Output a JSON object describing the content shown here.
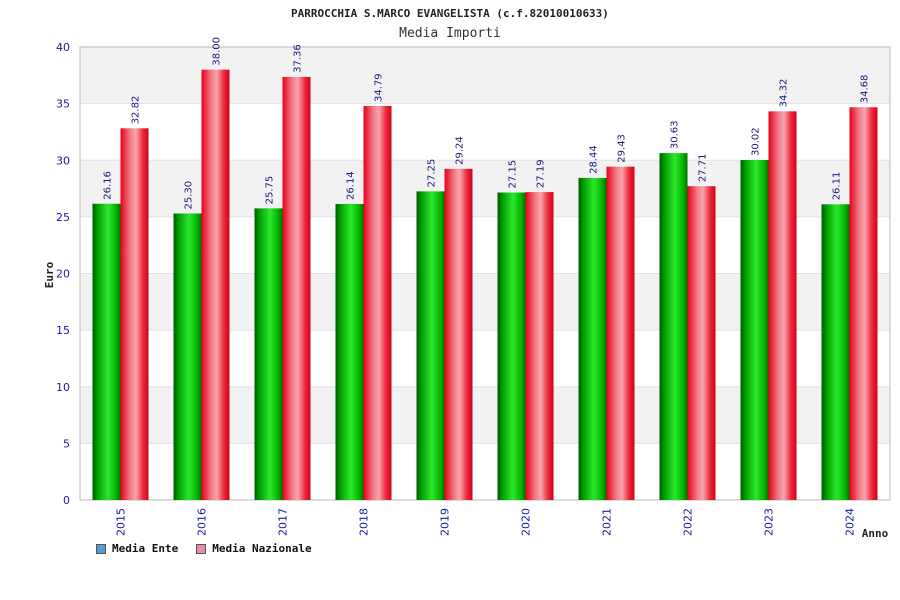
{
  "chart_data": {
    "type": "bar",
    "title": "PARROCCHIA S.MARCO EVANGELISTA (c.f.82010010633)",
    "subtitle": "Media Importi",
    "xlabel": "Anno",
    "ylabel": "Euro",
    "ylim": [
      0,
      40
    ],
    "yticks": [
      0,
      5,
      10,
      15,
      20,
      25,
      30,
      35,
      40
    ],
    "categories": [
      "2015",
      "2016",
      "2017",
      "2018",
      "2019",
      "2020",
      "2021",
      "2022",
      "2023",
      "2024"
    ],
    "series": [
      {
        "name": "Media Ente",
        "values": [
          26.16,
          25.3,
          25.75,
          26.14,
          27.25,
          27.15,
          28.44,
          30.63,
          30.02,
          26.11
        ],
        "labels": [
          "26.16",
          "25.30",
          "25.75",
          "26.14",
          "27.25",
          "27.15",
          "28.44",
          "30.63",
          "30.02",
          "26.11"
        ]
      },
      {
        "name": "Media Nazionale",
        "values": [
          32.82,
          38.0,
          37.36,
          34.79,
          29.24,
          27.19,
          29.43,
          27.71,
          34.32,
          34.68
        ],
        "labels": [
          "32.82",
          "38.00",
          "37.36",
          "34.79",
          "29.24",
          "27.19",
          "29.43",
          "27.71",
          "34.32",
          "34.68"
        ]
      }
    ],
    "legend": {
      "position": "bottom-left",
      "entries": [
        {
          "label": "Media Ente",
          "color": "#5b9bd5"
        },
        {
          "label": "Media Nazionale",
          "color": "#e88aa8"
        }
      ]
    },
    "colors": {
      "ente": "#00b000",
      "nazionale": "#ee1122",
      "tick": "#1a1aa6",
      "band": "#f2f2f2"
    }
  }
}
